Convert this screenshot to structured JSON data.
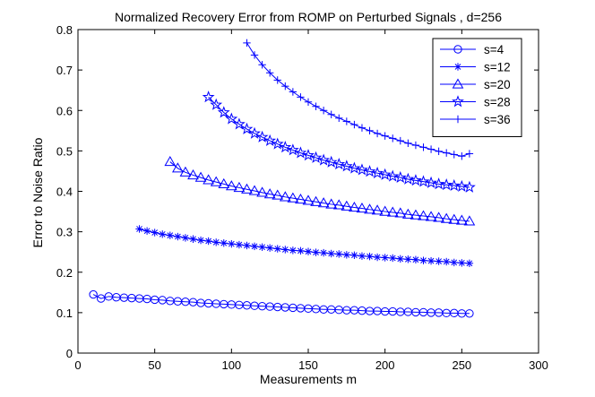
{
  "chart_data": {
    "type": "line",
    "title": "Normalized Recovery Error from ROMP on Perturbed Signals , d=256",
    "xlabel": "Measurements m",
    "ylabel": "Error to Noise Ratio",
    "xlim": [
      0,
      300
    ],
    "ylim": [
      0,
      0.8
    ],
    "xticks": [
      0,
      50,
      100,
      150,
      200,
      250,
      300
    ],
    "yticks": [
      0,
      0.1,
      0.2,
      0.3,
      0.4,
      0.5,
      0.6,
      0.7,
      0.8
    ],
    "xtick_labels": [
      "0",
      "50",
      "100",
      "150",
      "200",
      "250",
      "300"
    ],
    "ytick_labels": [
      "0",
      "0.1",
      "0.2",
      "0.3",
      "0.4",
      "0.5",
      "0.6",
      "0.7",
      "0.8"
    ],
    "legend_position": "top-right",
    "color": "#0000ff",
    "series": [
      {
        "name": "s=4",
        "marker": "circle",
        "x": [
          10,
          15,
          20,
          25,
          30,
          35,
          40,
          45,
          50,
          55,
          60,
          65,
          70,
          75,
          80,
          85,
          90,
          95,
          100,
          105,
          110,
          115,
          120,
          125,
          130,
          135,
          140,
          145,
          150,
          155,
          160,
          165,
          170,
          175,
          180,
          185,
          190,
          195,
          200,
          205,
          210,
          215,
          220,
          225,
          230,
          235,
          240,
          245,
          250,
          255
        ],
        "y": [
          0.145,
          0.135,
          0.14,
          0.138,
          0.137,
          0.136,
          0.135,
          0.134,
          0.132,
          0.131,
          0.129,
          0.128,
          0.127,
          0.126,
          0.124,
          0.123,
          0.122,
          0.121,
          0.12,
          0.119,
          0.118,
          0.117,
          0.116,
          0.115,
          0.114,
          0.113,
          0.112,
          0.111,
          0.11,
          0.109,
          0.108,
          0.108,
          0.107,
          0.106,
          0.106,
          0.105,
          0.104,
          0.104,
          0.103,
          0.103,
          0.102,
          0.102,
          0.101,
          0.101,
          0.1,
          0.1,
          0.099,
          0.099,
          0.098,
          0.098
        ]
      },
      {
        "name": "s=12",
        "marker": "asterisk",
        "x": [
          40,
          45,
          50,
          55,
          60,
          65,
          70,
          75,
          80,
          85,
          90,
          95,
          100,
          105,
          110,
          115,
          120,
          125,
          130,
          135,
          140,
          145,
          150,
          155,
          160,
          165,
          170,
          175,
          180,
          185,
          190,
          195,
          200,
          205,
          210,
          215,
          220,
          225,
          230,
          235,
          240,
          245,
          250,
          255
        ],
        "y": [
          0.307,
          0.302,
          0.298,
          0.294,
          0.291,
          0.288,
          0.285,
          0.282,
          0.279,
          0.277,
          0.274,
          0.272,
          0.27,
          0.268,
          0.266,
          0.264,
          0.262,
          0.26,
          0.258,
          0.256,
          0.254,
          0.253,
          0.251,
          0.249,
          0.248,
          0.246,
          0.245,
          0.243,
          0.242,
          0.24,
          0.239,
          0.237,
          0.236,
          0.235,
          0.233,
          0.232,
          0.231,
          0.229,
          0.228,
          0.227,
          0.226,
          0.224,
          0.223,
          0.222
        ]
      },
      {
        "name": "s=20",
        "marker": "triangle",
        "x": [
          60,
          65,
          70,
          75,
          80,
          85,
          90,
          95,
          100,
          105,
          110,
          115,
          120,
          125,
          130,
          135,
          140,
          145,
          150,
          155,
          160,
          165,
          170,
          175,
          180,
          185,
          190,
          195,
          200,
          205,
          210,
          215,
          220,
          225,
          230,
          235,
          240,
          245,
          250,
          255
        ],
        "y": [
          0.473,
          0.457,
          0.447,
          0.44,
          0.434,
          0.428,
          0.423,
          0.418,
          0.413,
          0.409,
          0.405,
          0.401,
          0.397,
          0.393,
          0.39,
          0.386,
          0.383,
          0.38,
          0.377,
          0.374,
          0.371,
          0.368,
          0.366,
          0.363,
          0.36,
          0.358,
          0.355,
          0.353,
          0.35,
          0.348,
          0.346,
          0.343,
          0.341,
          0.339,
          0.337,
          0.335,
          0.332,
          0.33,
          0.328,
          0.326
        ]
      },
      {
        "name": "s=28",
        "marker": "star",
        "x": [
          85,
          90,
          95,
          100,
          105,
          110,
          115,
          120,
          125,
          130,
          135,
          140,
          145,
          150,
          155,
          160,
          165,
          170,
          175,
          180,
          185,
          190,
          195,
          200,
          205,
          210,
          215,
          220,
          225,
          230,
          235,
          240,
          245,
          250,
          255
        ],
        "y": [
          0.633,
          0.614,
          0.595,
          0.579,
          0.566,
          0.554,
          0.543,
          0.534,
          0.525,
          0.517,
          0.509,
          0.502,
          0.495,
          0.489,
          0.483,
          0.477,
          0.472,
          0.467,
          0.462,
          0.457,
          0.453,
          0.449,
          0.445,
          0.441,
          0.437,
          0.434,
          0.43,
          0.427,
          0.424,
          0.421,
          0.418,
          0.416,
          0.414,
          0.412,
          0.41
        ]
      },
      {
        "name": "s=36",
        "marker": "plus",
        "x": [
          110,
          115,
          120,
          125,
          130,
          135,
          140,
          145,
          150,
          155,
          160,
          165,
          170,
          175,
          180,
          185,
          190,
          195,
          200,
          205,
          210,
          215,
          220,
          225,
          230,
          235,
          240,
          245,
          250,
          255
        ],
        "y": [
          0.767,
          0.737,
          0.713,
          0.693,
          0.675,
          0.66,
          0.646,
          0.633,
          0.621,
          0.61,
          0.6,
          0.59,
          0.581,
          0.573,
          0.565,
          0.557,
          0.55,
          0.543,
          0.537,
          0.531,
          0.525,
          0.519,
          0.514,
          0.509,
          0.504,
          0.499,
          0.495,
          0.491,
          0.487,
          0.493
        ]
      }
    ]
  }
}
